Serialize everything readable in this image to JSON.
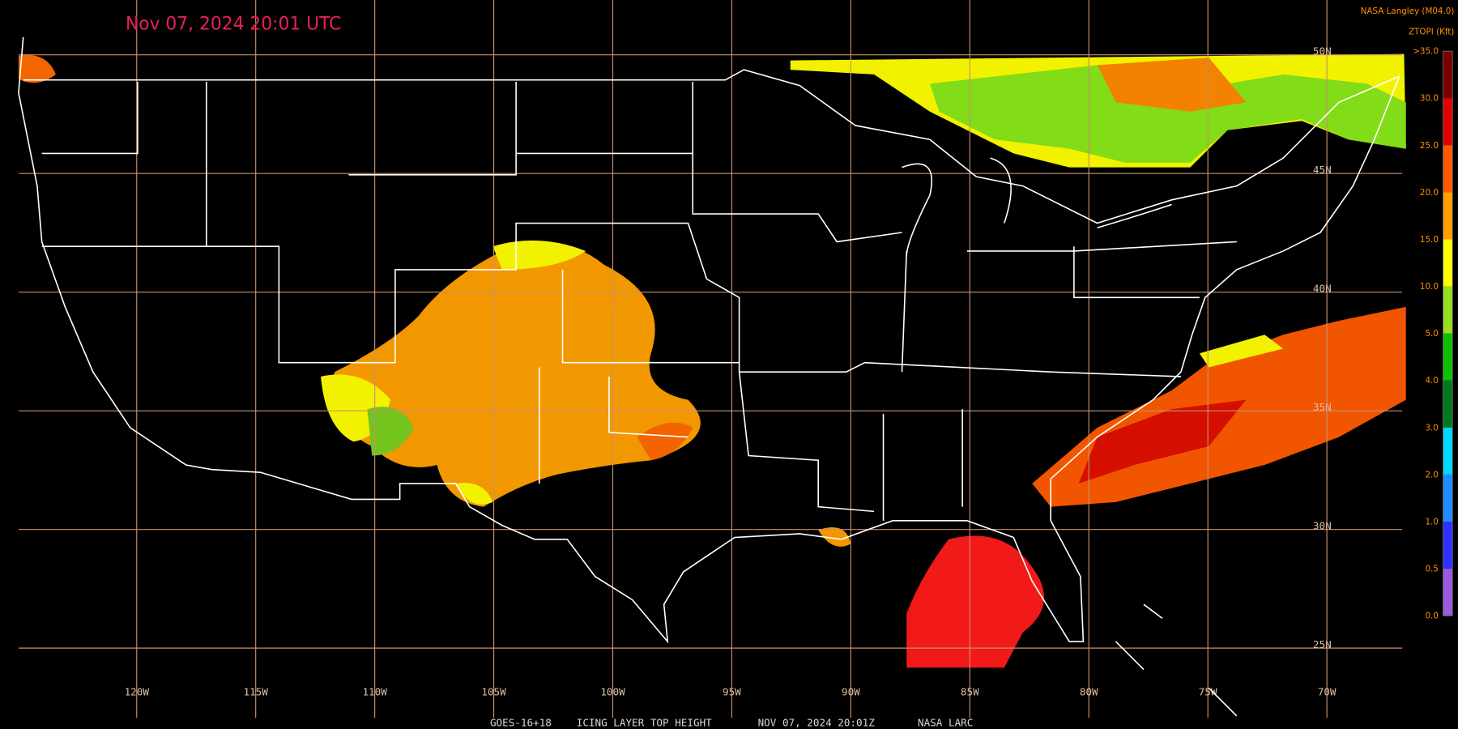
{
  "header": {
    "title": "Nov 07, 2024 20:01 UTC",
    "credit": "NASA Langley (M04.0)"
  },
  "legend": {
    "title": "ZTOPI (Kft)",
    "labels": [
      ">35.0",
      "30.0",
      "25.0",
      "20.0",
      "15.0",
      "10.0",
      "5.0",
      "4.0",
      "3.0",
      "2.0",
      "1.0",
      "0.5",
      "0.0"
    ],
    "colors": [
      "#7a0000",
      "#e00000",
      "#ff5a00",
      "#ffa000",
      "#ffff00",
      "#98e020",
      "#10c000",
      "#007a20",
      "#00d8ff",
      "#1e8cff",
      "#3030ff",
      "#9a5ae0"
    ]
  },
  "map": {
    "latitude_labels": [
      "50N",
      "45N",
      "40N",
      "35N",
      "30N",
      "25N"
    ],
    "longitude_labels": [
      "120W",
      "115W",
      "110W",
      "105W",
      "100W",
      "95W",
      "90W",
      "85W",
      "80W",
      "75W",
      "70W"
    ]
  },
  "footer": {
    "items": [
      "GOES-16+18",
      "ICING LAYER TOP HEIGHT",
      "NOV 07, 2024 20:01Z",
      "NASA LARC"
    ]
  }
}
